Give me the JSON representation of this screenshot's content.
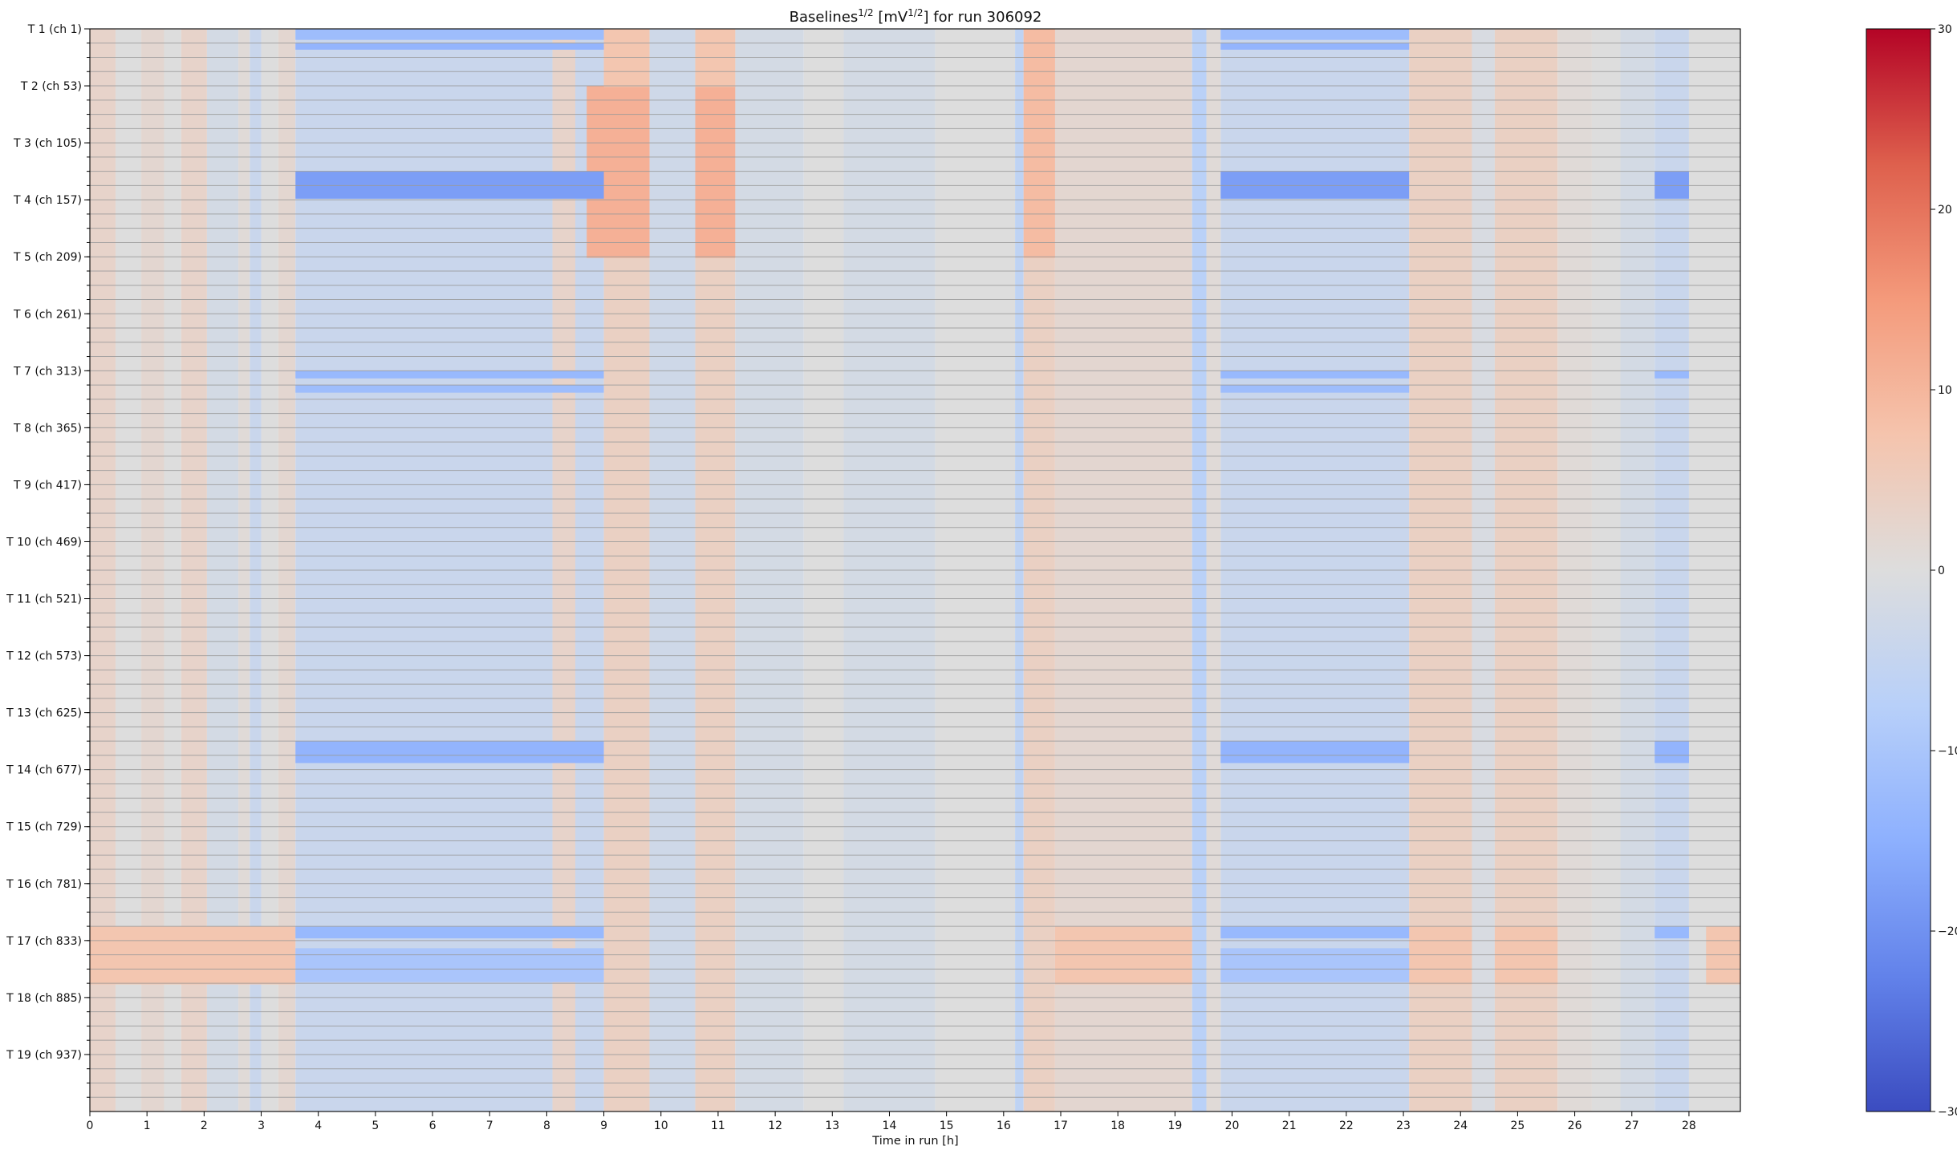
{
  "chart_data": [
    {
      "type": "heatmap",
      "title": {
        "prefix": "Baselines",
        "prefix_sup": "1/2",
        "middle": " [mV",
        "middle_sup": "1/2",
        "suffix": "] for run 306092"
      },
      "xlabel": "Time in run [h]",
      "ylabel": "",
      "xlim": [
        0,
        28.9
      ],
      "channel_range": [
        1,
        988
      ],
      "x_ticks": [
        0,
        1,
        2,
        3,
        4,
        5,
        6,
        7,
        8,
        9,
        10,
        11,
        12,
        13,
        14,
        15,
        16,
        17,
        18,
        19,
        20,
        21,
        22,
        23,
        24,
        25,
        26,
        27,
        28
      ],
      "x_tick_labels": [
        "0",
        "1",
        "2",
        "3",
        "4",
        "5",
        "6",
        "7",
        "8",
        "9",
        "10",
        "11",
        "12",
        "13",
        "14",
        "15",
        "16",
        "17",
        "18",
        "19",
        "20",
        "21",
        "22",
        "23",
        "24",
        "25",
        "26",
        "27",
        "28"
      ],
      "y_ticks": [
        {
          "label": "T 1 (ch 1)",
          "channel": 1
        },
        {
          "label": "T 2 (ch 53)",
          "channel": 53
        },
        {
          "label": "T 3 (ch 105)",
          "channel": 105
        },
        {
          "label": "T 4 (ch 157)",
          "channel": 157
        },
        {
          "label": "T 5 (ch 209)",
          "channel": 209
        },
        {
          "label": "T 6 (ch 261)",
          "channel": 261
        },
        {
          "label": "T 7 (ch 313)",
          "channel": 313
        },
        {
          "label": "T 8 (ch 365)",
          "channel": 365
        },
        {
          "label": "T 9 (ch 417)",
          "channel": 417
        },
        {
          "label": "T 10 (ch 469)",
          "channel": 469
        },
        {
          "label": "T 11 (ch 521)",
          "channel": 521
        },
        {
          "label": "T 12 (ch 573)",
          "channel": 573
        },
        {
          "label": "T 13 (ch 625)",
          "channel": 625
        },
        {
          "label": "T 14 (ch 677)",
          "channel": 677
        },
        {
          "label": "T 15 (ch 729)",
          "channel": 729
        },
        {
          "label": "T 16 (ch 781)",
          "channel": 781
        },
        {
          "label": "T 17 (ch 833)",
          "channel": 833
        },
        {
          "label": "T 18 (ch 885)",
          "channel": 885
        },
        {
          "label": "T 19 (ch 937)",
          "channel": 937
        }
      ],
      "minor_y_tick_every_channels": 13,
      "separator_every_channels": 13,
      "colorscale": "coolwarm",
      "colors": {
        "low": "#3b4cc0",
        "mid": "#dddddd",
        "high": "#b40426",
        "separator": "#9a9a9a"
      },
      "colorbar": {
        "range": [
          -30,
          30
        ],
        "ticks": [
          30,
          20,
          10,
          0,
          -10,
          -20,
          -30
        ],
        "tick_labels": [
          "30",
          "20",
          "10",
          "0",
          "−10",
          "−20",
          "−30"
        ]
      },
      "time_profile": [
        {
          "x": [
            0.0,
            0.45
          ],
          "value": 3
        },
        {
          "x": [
            0.45,
            0.9
          ],
          "value": 0
        },
        {
          "x": [
            0.9,
            1.3
          ],
          "value": 2
        },
        {
          "x": [
            1.3,
            1.6
          ],
          "value": 0
        },
        {
          "x": [
            1.6,
            2.05
          ],
          "value": 3
        },
        {
          "x": [
            2.05,
            2.6
          ],
          "value": -2
        },
        {
          "x": [
            2.6,
            2.8
          ],
          "value": 1
        },
        {
          "x": [
            2.8,
            3.0
          ],
          "value": -4
        },
        {
          "x": [
            3.0,
            3.3
          ],
          "value": 0
        },
        {
          "x": [
            3.3,
            3.6
          ],
          "value": 2
        },
        {
          "x": [
            3.6,
            8.1
          ],
          "value": -4
        },
        {
          "x": [
            8.1,
            8.5
          ],
          "value": 3
        },
        {
          "x": [
            8.5,
            9.0
          ],
          "value": -4
        },
        {
          "x": [
            9.0,
            9.8
          ],
          "value": 4
        },
        {
          "x": [
            9.8,
            10.6
          ],
          "value": -3
        },
        {
          "x": [
            10.6,
            11.3
          ],
          "value": 4
        },
        {
          "x": [
            11.3,
            12.5
          ],
          "value": -2
        },
        {
          "x": [
            12.5,
            13.2
          ],
          "value": 0
        },
        {
          "x": [
            13.2,
            14.8
          ],
          "value": -2
        },
        {
          "x": [
            14.8,
            16.2
          ],
          "value": 0
        },
        {
          "x": [
            16.2,
            16.35
          ],
          "value": -6
        },
        {
          "x": [
            16.35,
            16.9
          ],
          "value": 4
        },
        {
          "x": [
            16.9,
            19.3
          ],
          "value": 2
        },
        {
          "x": [
            19.3,
            19.55
          ],
          "value": -7
        },
        {
          "x": [
            19.55,
            19.8
          ],
          "value": 1
        },
        {
          "x": [
            19.8,
            23.1
          ],
          "value": -4
        },
        {
          "x": [
            23.1,
            24.2
          ],
          "value": 4
        },
        {
          "x": [
            24.2,
            24.6
          ],
          "value": -1
        },
        {
          "x": [
            24.6,
            25.7
          ],
          "value": 4
        },
        {
          "x": [
            25.7,
            26.3
          ],
          "value": 1
        },
        {
          "x": [
            26.3,
            26.8
          ],
          "value": 0
        },
        {
          "x": [
            26.8,
            27.4
          ],
          "value": -2
        },
        {
          "x": [
            27.4,
            28.0
          ],
          "value": -4
        },
        {
          "x": [
            28.0,
            28.9
          ],
          "value": 0
        }
      ],
      "hot_bands": [
        {
          "x": [
            8.7,
            9.8
          ],
          "channels": [
            53,
            209
          ],
          "value": 11
        },
        {
          "x": [
            10.6,
            11.3
          ],
          "channels": [
            53,
            209
          ],
          "value": 11
        },
        {
          "x": [
            16.35,
            16.9
          ],
          "channels": [
            1,
            209
          ],
          "value": 9
        },
        {
          "x": [
            9.0,
            9.8
          ],
          "channels": [
            1,
            53
          ],
          "value": 7
        },
        {
          "x": [
            10.6,
            11.3
          ],
          "channels": [
            1,
            53
          ],
          "value": 7
        }
      ],
      "cold_bands": [
        {
          "x_spans": [
            [
              3.6,
              9.0
            ],
            [
              19.8,
              23.1
            ]
          ],
          "channels": [
            1,
            10
          ],
          "value": -12
        },
        {
          "x_spans": [
            [
              3.6,
              9.0
            ],
            [
              19.8,
              23.1
            ]
          ],
          "channels": [
            14,
            19
          ],
          "value": -14
        },
        {
          "x_spans": [
            [
              3.6,
              9.0
            ],
            [
              19.8,
              23.1
            ],
            [
              27.4,
              28.0
            ]
          ],
          "channels": [
            131,
            155
          ],
          "value": -18
        },
        {
          "x_spans": [
            [
              3.6,
              9.0
            ],
            [
              19.8,
              23.1
            ],
            [
              27.4,
              28.0
            ]
          ],
          "channels": [
            313,
            319
          ],
          "value": -13
        },
        {
          "x_spans": [
            [
              3.6,
              9.0
            ],
            [
              19.8,
              23.1
            ]
          ],
          "channels": [
            326,
            332
          ],
          "value": -12
        },
        {
          "x_spans": [
            [
              3.6,
              9.0
            ],
            [
              19.8,
              23.1
            ],
            [
              27.4,
              28.0
            ]
          ],
          "channels": [
            651,
            670
          ],
          "value": -14
        },
        {
          "x_spans": [
            [
              3.6,
              9.0
            ],
            [
              19.8,
              23.1
            ],
            [
              27.4,
              28.0
            ]
          ],
          "channels": [
            820,
            830
          ],
          "value": -13
        },
        {
          "x_spans": [
            [
              3.6,
              9.0
            ],
            [
              19.8,
              23.1
            ]
          ],
          "channels": [
            840,
            870
          ],
          "value": -10
        }
      ],
      "warm_row_bands": [
        {
          "x_spans": [
            [
              0.0,
              3.6
            ],
            [
              16.9,
              19.3
            ],
            [
              23.1,
              24.2
            ],
            [
              24.6,
              25.7
            ],
            [
              28.3,
              28.9
            ]
          ],
          "channels": [
            820,
            872
          ],
          "value": 7
        }
      ]
    }
  ]
}
